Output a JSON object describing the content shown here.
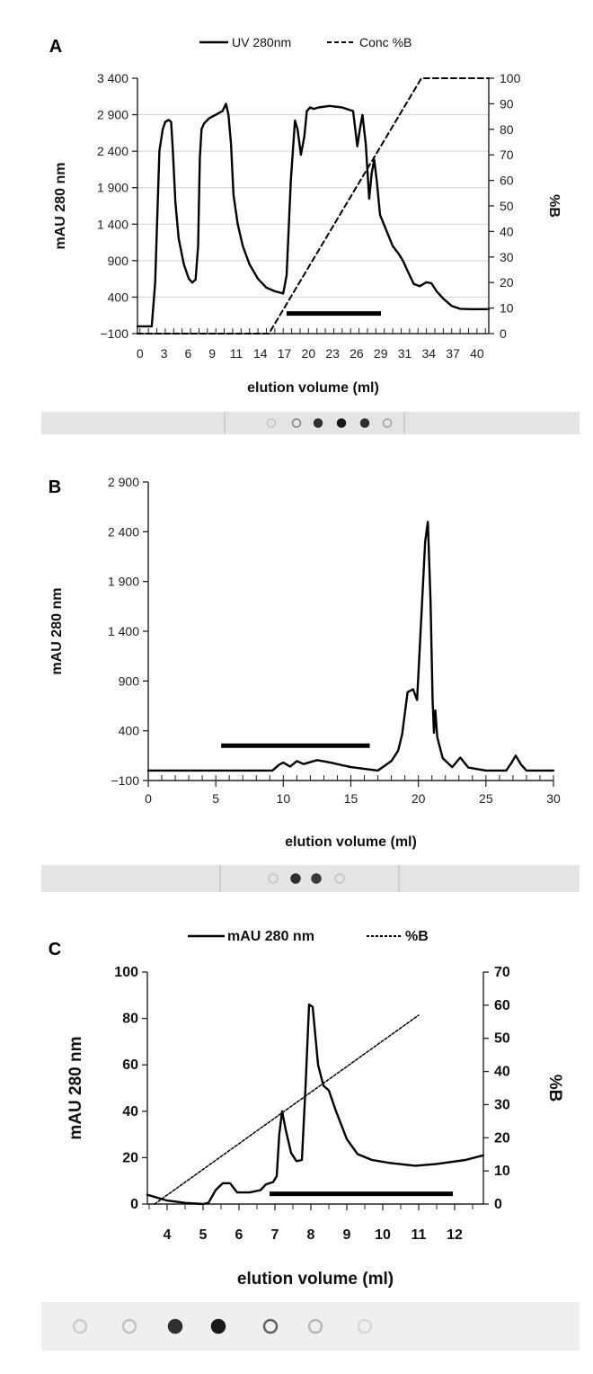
{
  "chart_data": [
    {
      "panel": "A",
      "type": "line",
      "legend": [
        "UV 280nm",
        "Conc %B"
      ],
      "xlabel": "elution volume (ml)",
      "ylabel": "mAU 280 nm",
      "y2label": "%B",
      "xlim": [
        -0.3,
        41.4
      ],
      "ylim": [
        -100,
        3400
      ],
      "y2lim": [
        0,
        100
      ],
      "grid": true,
      "xtick_labels": [
        "0",
        "3",
        "6",
        "9",
        "11",
        "14",
        "17",
        "20",
        "23",
        "26",
        "29",
        "31",
        "34",
        "37",
        "40"
      ],
      "ytick_values": [
        3400,
        2900,
        2400,
        1900,
        1400,
        900,
        400,
        -100
      ],
      "ytick_labels": [
        "3 400",
        "2 900",
        "2 400",
        "1 900",
        "1 400",
        "900",
        "400",
        "−100"
      ],
      "y2tick_values": [
        100,
        90,
        80,
        70,
        60,
        50,
        40,
        30,
        20,
        10,
        0
      ],
      "y2tick_labels": [
        "100",
        "90",
        "80",
        "70",
        "60",
        "50",
        "40",
        "30",
        "20",
        "10",
        "0"
      ],
      "series": [
        {
          "name": "UV 280nm",
          "axis": "left",
          "style": "solid",
          "x": [
            -0.3,
            1.4,
            1.8,
            2.3,
            2.7,
            3.0,
            3.4,
            3.7,
            3.9,
            4.2,
            4.6,
            5.2,
            5.8,
            6.2,
            6.6,
            6.9,
            7.1,
            7.3,
            7.6,
            8.2,
            9.0,
            9.8,
            10.2,
            10.5,
            10.8,
            11.1,
            11.6,
            12.2,
            13.0,
            14.0,
            15.0,
            16.0,
            17.0,
            17.4,
            17.9,
            18.4,
            18.7,
            19.1,
            19.5,
            19.8,
            20.2,
            20.6,
            21.2,
            22.5,
            24.0,
            25.3,
            25.8,
            26.1,
            26.4,
            26.8,
            27.2,
            27.5,
            27.8,
            28.1,
            28.5,
            29.3,
            30.0,
            30.7,
            31.2,
            31.8,
            32.5,
            33.2,
            34.0,
            34.6,
            35.2,
            36.0,
            37.0,
            38.0,
            39.3,
            41.4
          ],
          "y": [
            0,
            0,
            600,
            2400,
            2700,
            2800,
            2830,
            2800,
            2400,
            1700,
            1200,
            850,
            650,
            600,
            640,
            1100,
            2300,
            2700,
            2780,
            2850,
            2900,
            2950,
            3050,
            2900,
            2500,
            1800,
            1400,
            1100,
            850,
            650,
            530,
            480,
            450,
            700,
            2000,
            2820,
            2700,
            2350,
            2600,
            2950,
            3000,
            2980,
            3000,
            3020,
            3000,
            2950,
            2467,
            2700,
            2896,
            2500,
            1750,
            2100,
            2282,
            2000,
            1525,
            1300,
            1100,
            993,
            900,
            750,
            580,
            550,
            604,
            590,
            480,
            380,
            280,
            240,
            235,
            235
          ]
        },
        {
          "name": "Conc %B",
          "axis": "right",
          "style": "dashed",
          "x": [
            -0.3,
            15.3,
            33.4,
            41.4
          ],
          "y": [
            0,
            0,
            100,
            100
          ]
        }
      ],
      "fraction_bar": {
        "x": [
          17.4,
          28.6
        ],
        "y": 175
      },
      "dot_blot": [
        0.15,
        0.45,
        0.85,
        0.95,
        0.85,
        0.3
      ]
    },
    {
      "panel": "B",
      "type": "line",
      "legend": [],
      "xlabel": "elution volume (ml)",
      "ylabel": "mAU 280 nm",
      "xlim": [
        0,
        30
      ],
      "ylim": [
        -100,
        2900
      ],
      "grid": false,
      "xtick_values": [
        0,
        5,
        10,
        15,
        20,
        25,
        30
      ],
      "xtick_labels": [
        "0",
        "5",
        "10",
        "15",
        "20",
        "25",
        "30"
      ],
      "ytick_values": [
        2900,
        2400,
        1900,
        1400,
        900,
        400,
        -100
      ],
      "ytick_labels": [
        "2 900",
        "2 400",
        "1 900",
        "1 400",
        "900",
        "400",
        "−100"
      ],
      "series": [
        {
          "name": "mAU 280 nm",
          "axis": "left",
          "style": "solid",
          "x": [
            0,
            9.2,
            9.7,
            10.0,
            10.5,
            11.0,
            11.5,
            12.5,
            13.5,
            15.0,
            17.0,
            18.0,
            18.5,
            18.8,
            19.2,
            19.6,
            19.9,
            20.2,
            20.5,
            20.7,
            20.9,
            21.05,
            21.15,
            21.25,
            21.4,
            21.8,
            22.5,
            23.1,
            23.7,
            25.0,
            26.5,
            26.9,
            27.2,
            27.6,
            28.0,
            30
          ],
          "y": [
            0,
            0,
            60,
            80,
            40,
            95,
            65,
            105,
            80,
            35,
            0,
            95,
            200,
            365,
            787,
            817,
            710,
            1500,
            2300,
            2500,
            1700,
            700,
            380,
            605,
            335,
            125,
            35,
            130,
            30,
            0,
            0,
            80,
            150,
            60,
            0,
            0
          ]
        }
      ],
      "fraction_bar": {
        "x": [
          5.4,
          16.4
        ],
        "y": 250
      },
      "dot_blot": [
        0.15,
        0.85,
        0.8,
        0.15
      ]
    },
    {
      "panel": "C",
      "type": "line",
      "legend": [
        "mAU 280 nm",
        "%B"
      ],
      "xlabel": "elution volume (ml)",
      "ylabel": "mAU 280 nm",
      "y2label": "%B",
      "xlim": [
        3.45,
        12.8
      ],
      "ylim": [
        0,
        100
      ],
      "y2lim": [
        0,
        70
      ],
      "grid": false,
      "xtick_values": [
        4,
        5,
        6,
        7,
        8,
        9,
        10,
        11,
        12
      ],
      "xtick_labels": [
        "4",
        "5",
        "6",
        "7",
        "8",
        "9",
        "10",
        "11",
        "12"
      ],
      "ytick_values": [
        100,
        80,
        60,
        40,
        20,
        0
      ],
      "ytick_labels": [
        "100",
        "80",
        "60",
        "40",
        "20",
        "0"
      ],
      "y2tick_values": [
        70,
        60,
        50,
        40,
        30,
        20,
        10,
        0
      ],
      "y2tick_labels": [
        "70",
        "60",
        "50",
        "40",
        "30",
        "20",
        "10",
        "0"
      ],
      "series": [
        {
          "name": "mAU 280 nm",
          "axis": "left",
          "style": "solid",
          "x": [
            3.45,
            4.0,
            4.5,
            5.0,
            5.15,
            5.35,
            5.55,
            5.75,
            5.95,
            6.3,
            6.6,
            6.75,
            6.95,
            7.05,
            7.12,
            7.2,
            7.3,
            7.45,
            7.6,
            7.75,
            7.85,
            7.95,
            8.05,
            8.2,
            8.35,
            8.5,
            8.7,
            9.0,
            9.3,
            9.7,
            10.2,
            10.9,
            11.5,
            12.3,
            12.8
          ],
          "y": [
            4,
            1.5,
            0.5,
            0,
            0.5,
            6,
            9,
            9,
            5,
            5,
            6,
            8.5,
            9.5,
            12,
            30,
            40,
            32,
            22,
            18.5,
            19,
            50,
            86,
            85,
            60,
            51,
            49,
            40,
            28,
            21.5,
            19,
            17.7,
            16.5,
            17.3,
            19,
            21
          ]
        },
        {
          "name": "%B",
          "axis": "right",
          "style": "dotted",
          "x": [
            3.65,
            11.0
          ],
          "y": [
            0,
            57
          ]
        }
      ],
      "fraction_bar": {
        "x": [
          6.85,
          11.95
        ],
        "y": 4.4
      },
      "dot_blot": [
        0.1,
        0.15,
        0.85,
        0.95,
        0.6,
        0.2,
        0.05
      ]
    }
  ]
}
